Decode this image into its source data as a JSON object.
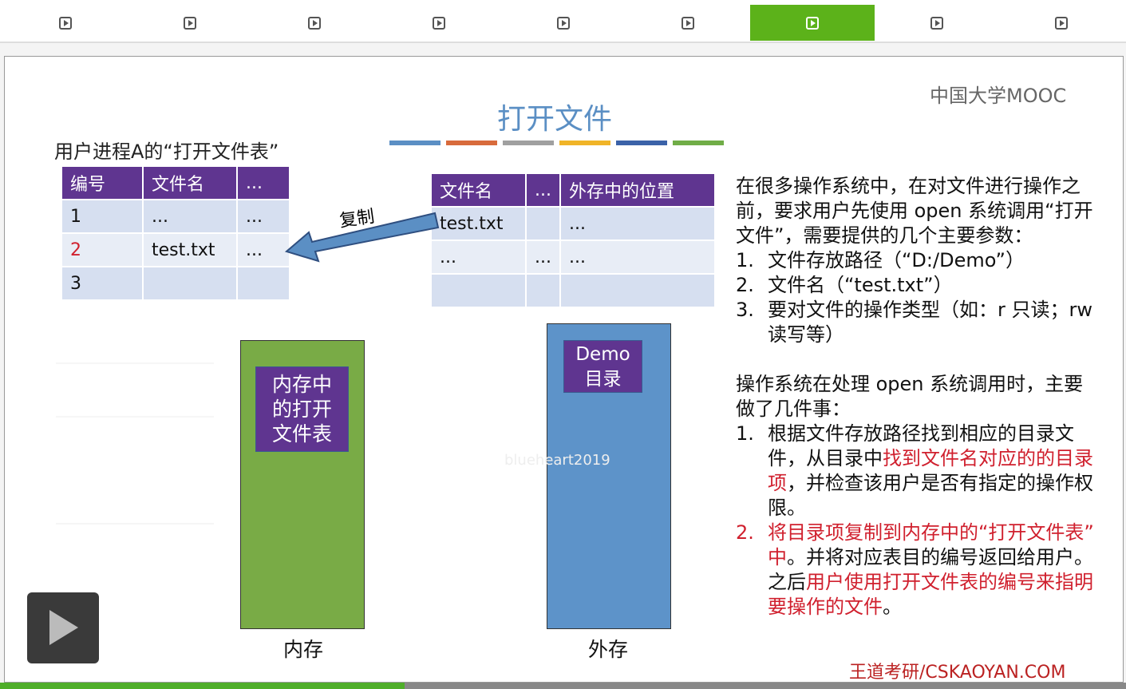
{
  "slide": {
    "logo": "中国大学MOOC",
    "title": "打开文件",
    "table_caption": "用户进程A的“打开文件表”",
    "process_table": {
      "headers": [
        "编号",
        "文件名",
        "..."
      ],
      "rows": [
        [
          "1",
          "...",
          "..."
        ],
        [
          "2",
          "test.txt",
          "..."
        ],
        [
          "3",
          null,
          null
        ]
      ]
    },
    "directory_table": {
      "headers": [
        "文件名",
        "...",
        "外存中的位置"
      ],
      "rows": [
        [
          "test.txt",
          null,
          "..."
        ],
        [
          "...",
          "...",
          "..."
        ],
        [
          null,
          null,
          null
        ]
      ]
    },
    "arrow_label": "复制",
    "memory_box": {
      "lines": [
        "内存中",
        "的打开",
        "文件表"
      ],
      "label": "内存"
    },
    "disk_box": {
      "lines": [
        "Demo",
        "目录"
      ],
      "label": "外存"
    },
    "watermark": "blueheart2019",
    "paragraphs": [
      {
        "text": "在很多操作系统中，在对文件进行操作之前，要求用户先使用 open 系统调用“打开文件”，需要提供的几个主要参数：",
        "items": [
          {
            "num": "1.",
            "segments": [
              {
                "text": "文件存放路径（“D:/Demo”）"
              }
            ]
          },
          {
            "num": "2.",
            "segments": [
              {
                "text": "文件名（“test.txt”）"
              }
            ]
          },
          {
            "num": "3.",
            "segments": [
              {
                "text": "要对文件的操作类型（如：r 只读；rw 读写等）"
              }
            ]
          }
        ]
      },
      {
        "text": "操作系统在处理 open 系统调用时，主要做了几件事：",
        "items": [
          {
            "num": "1.",
            "segments": [
              {
                "text": "根据文件存放路径找到相应的目录文件，从目录中"
              },
              {
                "text": "找到文件名对应的的目录项",
                "red": true
              },
              {
                "text": "，并检查该用户是否有指定的操作权限。"
              }
            ]
          },
          {
            "num": "2.",
            "red": true,
            "segments": [
              {
                "text": "将目录项复制到内存中的“打开文件表”中",
                "red": true
              },
              {
                "text": "。并将对应表目的编号返回给用户。之后"
              },
              {
                "text": "用户使用打开文件表的编号来指明要操作的文件",
                "red": true
              },
              {
                "text": "。"
              }
            ]
          }
        ]
      }
    ],
    "footer": "王道考研/CSKAOYAN.COM"
  }
}
